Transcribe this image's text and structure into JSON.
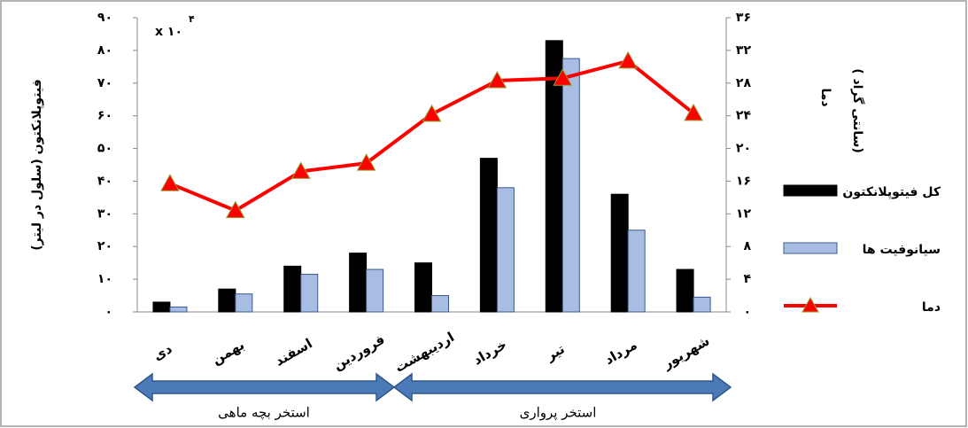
{
  "chart_data": {
    "type": "bar",
    "annotation": "x ۱۰",
    "annotation_exponent": "۴",
    "y_label": "فیتوپلانکتون (سلول در لیتر)",
    "y2_label": [
      "دما",
      "( سانتی گراد)"
    ],
    "categories": [
      "دی",
      "بهمن",
      "اسفند",
      "فروردین",
      "اردیبهشت",
      "خرداد",
      "تیر",
      "مرداد",
      "شهریور"
    ],
    "series": [
      {
        "name": "کل فیتوپلانکتون",
        "color": "#000000",
        "values": [
          3,
          7,
          14,
          18,
          15,
          47,
          83,
          36,
          13
        ]
      },
      {
        "name": "سیانوفیت ها",
        "color": "#a9bde3",
        "values": [
          1.5,
          5.5,
          11.5,
          13,
          5,
          38,
          77.5,
          25,
          4.5
        ]
      },
      {
        "name": "دما",
        "color": "#ff0000",
        "type": "line",
        "axis": "y2",
        "values": [
          15.7,
          12.4,
          17.2,
          18.2,
          24.2,
          28.3,
          28.6,
          30.7,
          24.3
        ]
      }
    ],
    "ylim": [
      0,
      90
    ],
    "yticks": [
      {
        "value": 0,
        "label": "۰"
      },
      {
        "value": 10,
        "label": "۱۰"
      },
      {
        "value": 20,
        "label": "۲۰"
      },
      {
        "value": 30,
        "label": "۳۰"
      },
      {
        "value": 40,
        "label": "۴۰"
      },
      {
        "value": 50,
        "label": "۵۰"
      },
      {
        "value": 60,
        "label": "۶۰"
      },
      {
        "value": 70,
        "label": "۷۰"
      },
      {
        "value": 80,
        "label": "۸۰"
      },
      {
        "value": 90,
        "label": "۹۰"
      }
    ],
    "y2lim": [
      0,
      36
    ],
    "y2ticks": [
      {
        "value": 0,
        "label": "۰"
      },
      {
        "value": 4,
        "label": "۴"
      },
      {
        "value": 8,
        "label": "۸"
      },
      {
        "value": 12,
        "label": "۱۲"
      },
      {
        "value": 16,
        "label": "۱۶"
      },
      {
        "value": 20,
        "label": "۲۰"
      },
      {
        "value": 24,
        "label": "۲۴"
      },
      {
        "value": 28,
        "label": "۲۸"
      },
      {
        "value": 32,
        "label": "۳۲"
      },
      {
        "value": 36,
        "label": "۳۶"
      }
    ],
    "groups": [
      "استخر بچه ماهی",
      "استخر پرواری"
    ]
  }
}
